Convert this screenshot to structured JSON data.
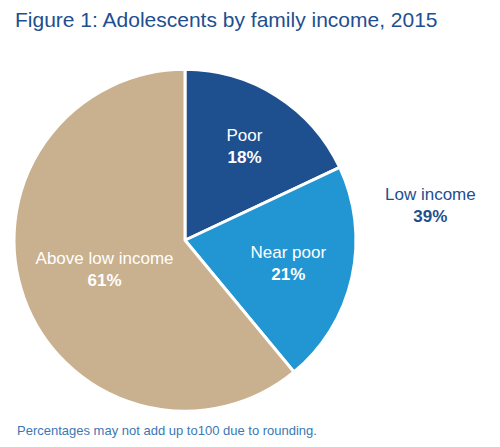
{
  "chart_data": {
    "type": "pie",
    "title": "Figure 1: Adolescents by family income, 2015",
    "categories": [
      "Poor",
      "Near poor",
      "Above low income"
    ],
    "values": [
      18,
      21,
      61
    ],
    "value_labels": [
      "18%",
      "21%",
      "61%"
    ],
    "colors": [
      "#1e4f8f",
      "#2196d3",
      "#c9b08e"
    ],
    "data_labels": true,
    "annotations": [
      {
        "text": "Low income",
        "value": 39,
        "value_label": "39%"
      }
    ],
    "note": "Percentages may not add up to100 due to rounding."
  }
}
